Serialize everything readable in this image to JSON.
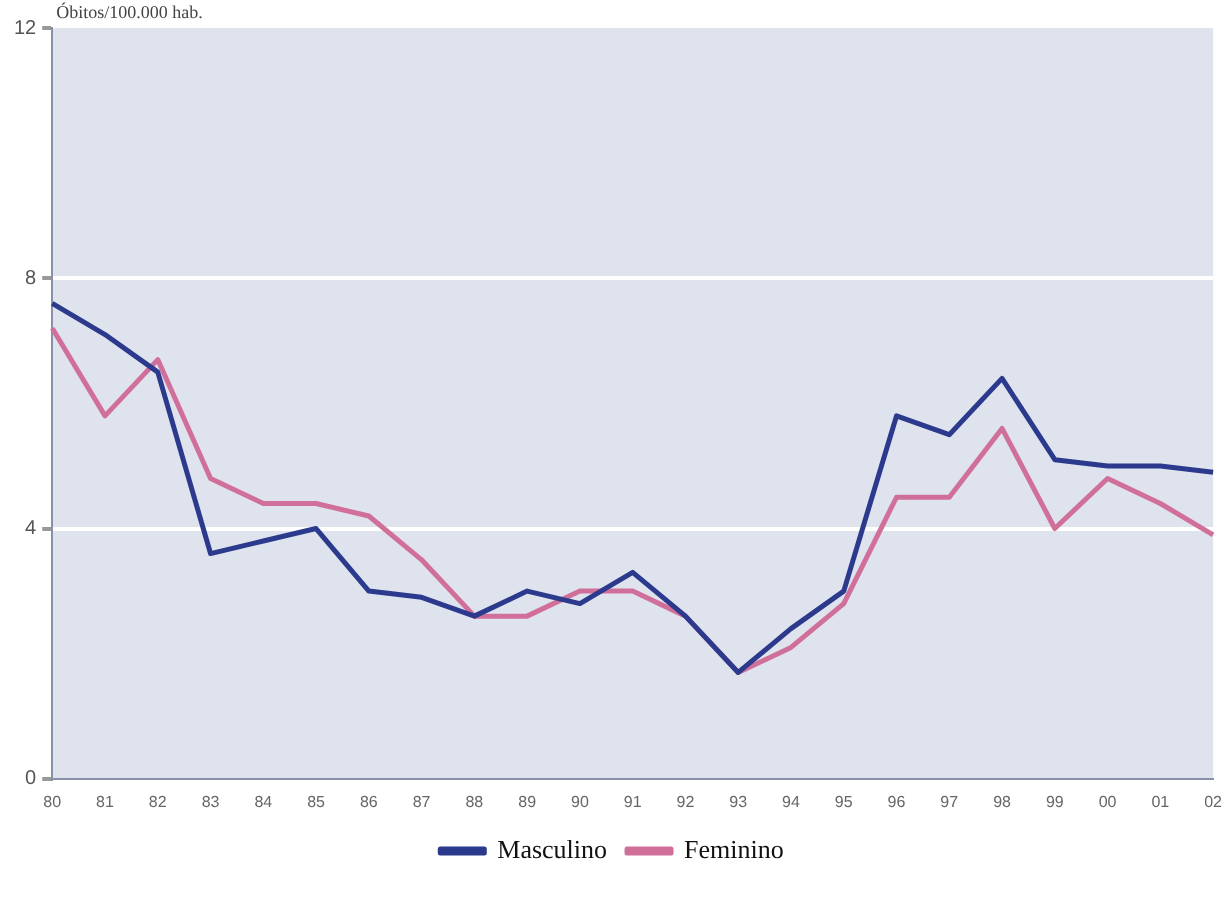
{
  "chart_data": {
    "type": "line",
    "ylabel": "Óbitos/100.000 hab.",
    "categories": [
      "80",
      "81",
      "82",
      "83",
      "84",
      "85",
      "86",
      "87",
      "88",
      "89",
      "90",
      "91",
      "92",
      "93",
      "94",
      "95",
      "96",
      "97",
      "98",
      "99",
      "00",
      "01",
      "02"
    ],
    "series": [
      {
        "name": "Masculino",
        "color": "#2b3a8c",
        "values": [
          7.6,
          7.1,
          6.5,
          3.6,
          3.8,
          4.0,
          3.0,
          2.9,
          2.6,
          3.0,
          2.8,
          3.3,
          2.6,
          1.7,
          2.4,
          3.0,
          5.8,
          5.5,
          6.4,
          5.1,
          5.0,
          5.0,
          4.9
        ]
      },
      {
        "name": "Feminino",
        "color": "#d0709a",
        "values": [
          7.2,
          5.8,
          6.7,
          4.8,
          4.4,
          4.4,
          4.2,
          3.5,
          2.6,
          2.6,
          3.0,
          3.0,
          2.6,
          1.7,
          2.1,
          2.8,
          4.5,
          4.5,
          5.6,
          4.0,
          4.8,
          4.4,
          3.9
        ]
      }
    ],
    "ylim": [
      0,
      12
    ],
    "yticks": [
      0,
      4,
      8,
      12
    ],
    "grid": "y",
    "legend": "bottom",
    "marker": "none",
    "line_style": "solid"
  }
}
